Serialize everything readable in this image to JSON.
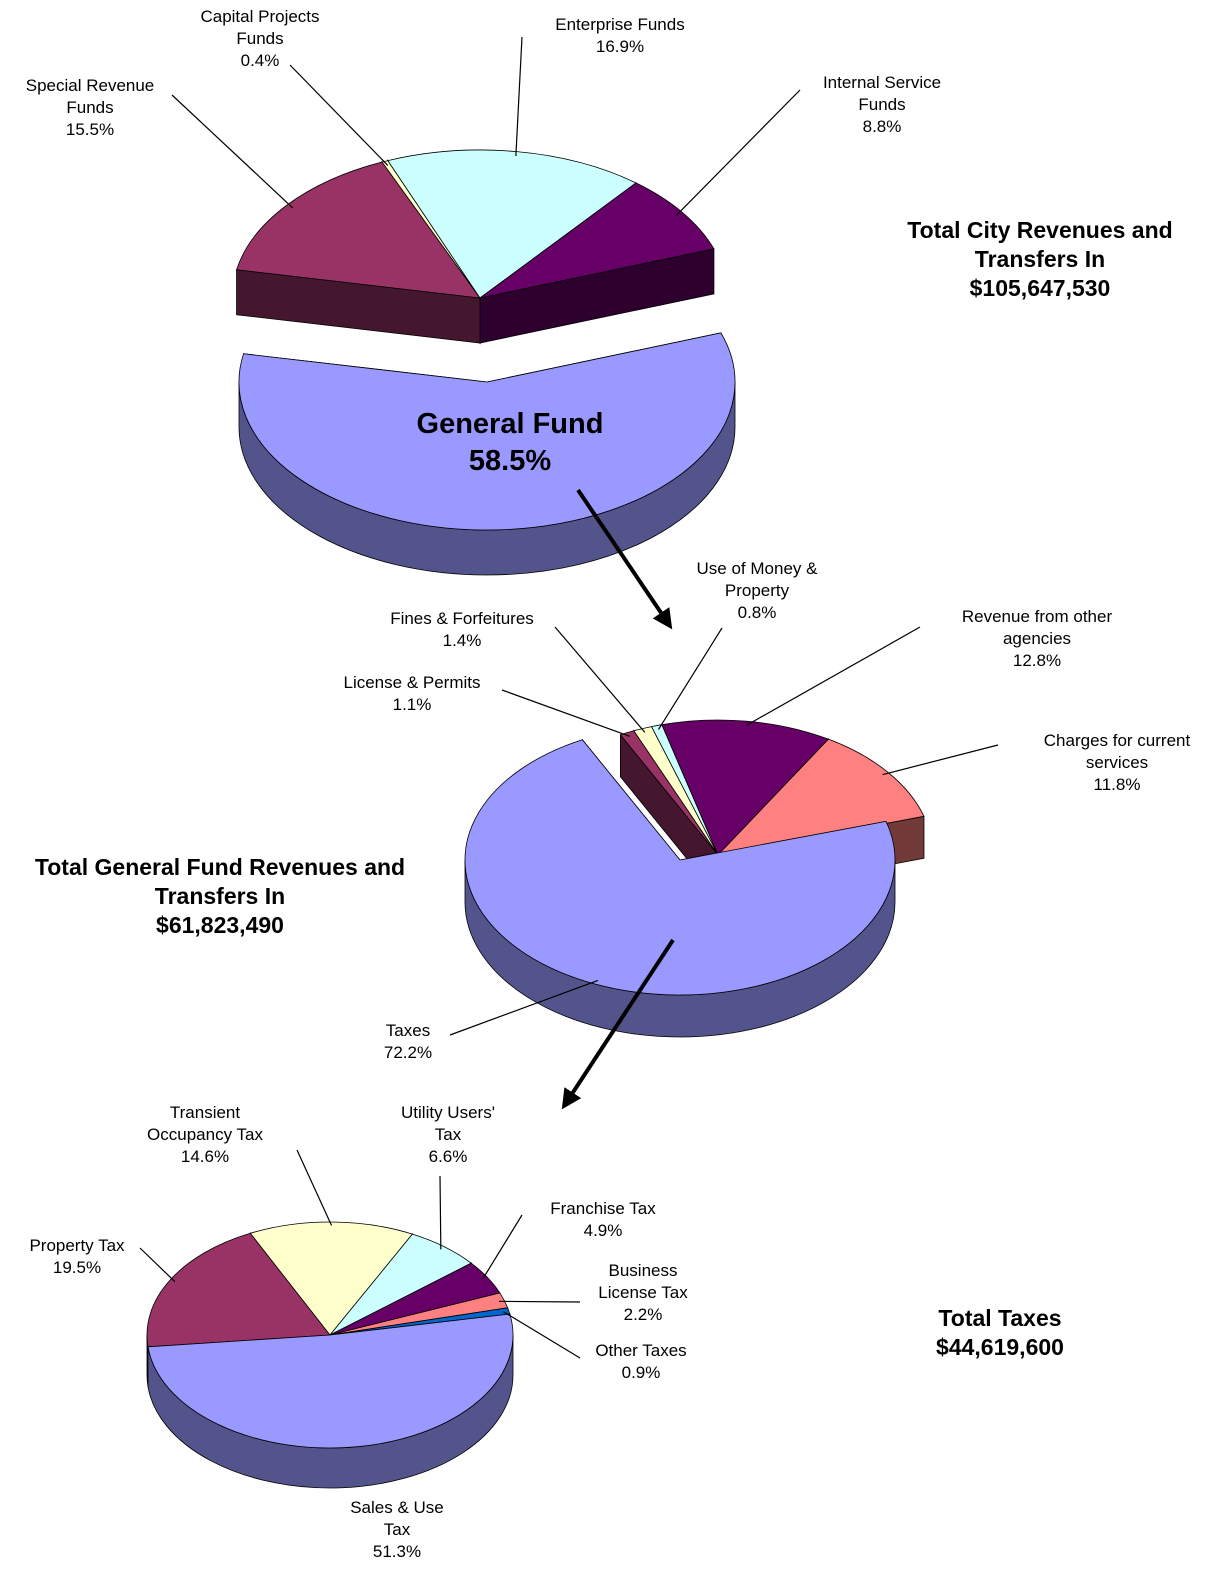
{
  "chart_data": [
    {
      "type": "pie",
      "title": "Total City Revenues and Transfers In",
      "subtitle": "$105,647,530",
      "categories": [
        "Special Revenue Funds",
        "Capital Projects Funds",
        "Enterprise Funds",
        "Internal Service Funds",
        "General Fund"
      ],
      "values": [
        15.5,
        0.4,
        16.9,
        8.8,
        58.5
      ],
      "value_labels": [
        "15.5%",
        "0.4%",
        "16.9%",
        "8.8%",
        "58.5%"
      ],
      "colors": [
        "#993366",
        "#ffffcc",
        "#ccffff",
        "#660066",
        "#9999ff"
      ]
    },
    {
      "type": "pie",
      "title": "Total General Fund Revenues and Transfers In",
      "subtitle": "$61,823,490",
      "categories": [
        "License & Permits",
        "Fines & Forfeitures",
        "Use of Money & Property",
        "Revenue from other agencies",
        "Charges for current services",
        "Taxes"
      ],
      "values": [
        1.1,
        1.4,
        0.8,
        12.8,
        11.8,
        72.2
      ],
      "value_labels": [
        "1.1%",
        "1.4%",
        "0.8%",
        "12.8%",
        "11.8%",
        "72.2%"
      ],
      "colors": [
        "#993366",
        "#ffffcc",
        "#ccffff",
        "#660066",
        "#ff8080",
        "#9999ff"
      ]
    },
    {
      "type": "pie",
      "title": "Total Taxes",
      "subtitle": "$44,619,600",
      "categories": [
        "Property Tax",
        "Transient Occupancy Tax",
        "Utility Users' Tax",
        "Franchise Tax",
        "Business License Tax",
        "Other Taxes",
        "Sales & Use Tax"
      ],
      "values": [
        19.5,
        14.6,
        6.6,
        4.9,
        2.2,
        0.9,
        51.3
      ],
      "value_labels": [
        "19.5%",
        "14.6%",
        "6.6%",
        "4.9%",
        "2.2%",
        "0.9%",
        "51.3%"
      ],
      "colors": [
        "#993366",
        "#ffffcc",
        "#ccffff",
        "#660066",
        "#ff8080",
        "#0066cc",
        "#9999ff"
      ]
    }
  ]
}
